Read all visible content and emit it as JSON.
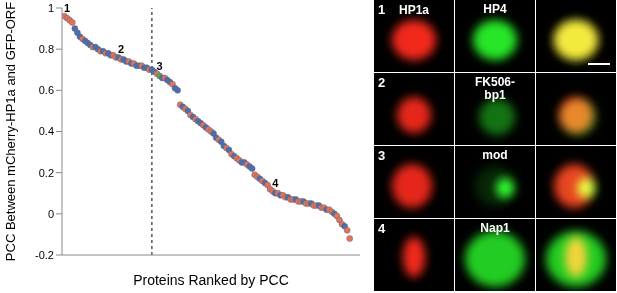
{
  "chart_data": {
    "type": "scatter",
    "y_label": "PCC Between mCherry-HP1a and GFP-ORF",
    "x_label": "Proteins Ranked by PCC",
    "x": [
      1,
      2,
      3,
      4,
      5,
      6,
      7,
      8,
      9,
      10,
      11,
      12,
      13,
      14,
      15,
      16,
      17,
      18,
      19,
      20,
      21,
      22,
      23,
      24,
      25,
      26,
      27,
      28,
      29,
      30,
      31,
      32,
      33,
      34,
      35,
      36,
      37,
      38,
      39,
      40,
      41,
      42,
      43,
      44,
      45,
      46,
      47,
      48,
      49,
      50,
      51,
      52,
      53,
      54,
      55,
      56,
      57,
      58,
      59,
      60,
      61,
      62,
      63,
      64,
      65,
      66,
      67,
      68,
      69,
      70,
      71,
      72,
      73,
      74,
      75,
      76,
      77,
      78,
      79,
      80,
      81,
      82,
      83,
      84,
      85,
      86,
      87,
      88,
      89,
      90,
      91,
      92,
      93,
      94,
      95,
      96,
      97,
      98,
      99,
      100,
      101,
      102,
      103,
      104,
      105,
      106,
      107,
      108,
      109,
      110,
      111,
      112
    ],
    "values": [
      0.96,
      0.95,
      0.94,
      0.93,
      0.9,
      0.88,
      0.86,
      0.85,
      0.84,
      0.83,
      0.82,
      0.81,
      0.81,
      0.8,
      0.79,
      0.79,
      0.78,
      0.78,
      0.77,
      0.77,
      0.76,
      0.76,
      0.75,
      0.75,
      0.74,
      0.74,
      0.73,
      0.73,
      0.72,
      0.72,
      0.72,
      0.71,
      0.71,
      0.7,
      0.7,
      0.69,
      0.68,
      0.67,
      0.66,
      0.66,
      0.65,
      0.64,
      0.63,
      0.61,
      0.6,
      0.53,
      0.52,
      0.51,
      0.5,
      0.48,
      0.47,
      0.46,
      0.45,
      0.44,
      0.43,
      0.42,
      0.41,
      0.4,
      0.39,
      0.37,
      0.36,
      0.35,
      0.33,
      0.32,
      0.31,
      0.29,
      0.28,
      0.27,
      0.26,
      0.25,
      0.25,
      0.24,
      0.23,
      0.22,
      0.19,
      0.18,
      0.17,
      0.16,
      0.15,
      0.14,
      0.12,
      0.11,
      0.1,
      0.1,
      0.09,
      0.09,
      0.08,
      0.08,
      0.07,
      0.07,
      0.07,
      0.06,
      0.06,
      0.06,
      0.05,
      0.05,
      0.05,
      0.04,
      0.04,
      0.04,
      0.03,
      0.03,
      0.02,
      0.02,
      0.01,
      0.0,
      -0.01,
      -0.03,
      -0.05,
      -0.06,
      -0.08,
      -0.12
    ],
    "colors": [
      "#e2735e",
      "#e2735e",
      "#e2735e",
      "#e2735e",
      "#4b6db4",
      "#4b6db4",
      "#4b6db4",
      "#e2735e",
      "#4b6db4",
      "#4b6db4",
      "#4b6db4",
      "#e2735e",
      "#4b6db4",
      "#4b6db4",
      "#e2735e",
      "#4b6db4",
      "#e2735e",
      "#4b6db4",
      "#4b6db4",
      "#e2735e",
      "#e2735e",
      "#4b6db4",
      "#e2735e",
      "#4b6db4",
      "#4b6db4",
      "#e2735e",
      "#4b6db4",
      "#e2735e",
      "#4b6db4",
      "#4b6db4",
      "#e2735e",
      "#4b6db4",
      "#4b6db4",
      "#e2735e",
      "#4b6db4",
      "#4b6db4",
      "#e2735e",
      "#4caf50",
      "#4b6db4",
      "#e2735e",
      "#4b6db4",
      "#4b6db4",
      "#e2735e",
      "#4b6db4",
      "#4b6db4",
      "#e2735e",
      "#4b6db4",
      "#e2735e",
      "#4b6db4",
      "#e2735e",
      "#4b6db4",
      "#e2735e",
      "#4b6db4",
      "#4b6db4",
      "#e2735e",
      "#4b6db4",
      "#e2735e",
      "#e2735e",
      "#4b6db4",
      "#4b6db4",
      "#e2735e",
      "#4b6db4",
      "#4b6db4",
      "#e2735e",
      "#4b6db4",
      "#e2735e",
      "#4b6db4",
      "#e2735e",
      "#e2735e",
      "#4b6db4",
      "#4b6db4",
      "#e2735e",
      "#4b6db4",
      "#4b6db4",
      "#e2735e",
      "#e2735e",
      "#4b6db4",
      "#e2735e",
      "#4b6db4",
      "#e2735e",
      "#e2735e",
      "#e2735e",
      "#4b6db4",
      "#e2735e",
      "#4b6db4",
      "#e2735e",
      "#e2735e",
      "#4b6db4",
      "#e2735e",
      "#e2735e",
      "#4b6db4",
      "#e2735e",
      "#e2735e",
      "#4b6db4",
      "#e2735e",
      "#e2735e",
      "#4b6db4",
      "#e2735e",
      "#e2735e",
      "#4b6db4",
      "#e2735e",
      "#e2735e",
      "#4b6db4",
      "#e2735e",
      "#e2735e",
      "#4b6db4",
      "#e2735e",
      "#e2735e",
      "#e2735e",
      "#4b6db4",
      "#e2735e",
      "#e2735e"
    ],
    "marker": "circle",
    "xlim": [
      0,
      116
    ],
    "ylim": [
      -0.2,
      1
    ],
    "yticks": [
      -0.2,
      0,
      0.2,
      0.4,
      0.6,
      0.8,
      1
    ],
    "tick_labels": "y",
    "grid": false,
    "divider_x": 35,
    "annotations": [
      {
        "text": "1",
        "x": 2,
        "y": 0.95
      },
      {
        "text": "2",
        "x": 23,
        "y": 0.75
      },
      {
        "text": "3",
        "x": 38,
        "y": 0.67
      },
      {
        "text": "4",
        "x": 83,
        "y": 0.1
      }
    ]
  },
  "image_panels": [
    {
      "number": "1",
      "red_label": "HP1a",
      "green_label": "HP4"
    },
    {
      "number": "2",
      "green_label": "FK506-bp1"
    },
    {
      "number": "3",
      "green_label": "mod"
    },
    {
      "number": "4",
      "green_label": "Nap1"
    }
  ]
}
